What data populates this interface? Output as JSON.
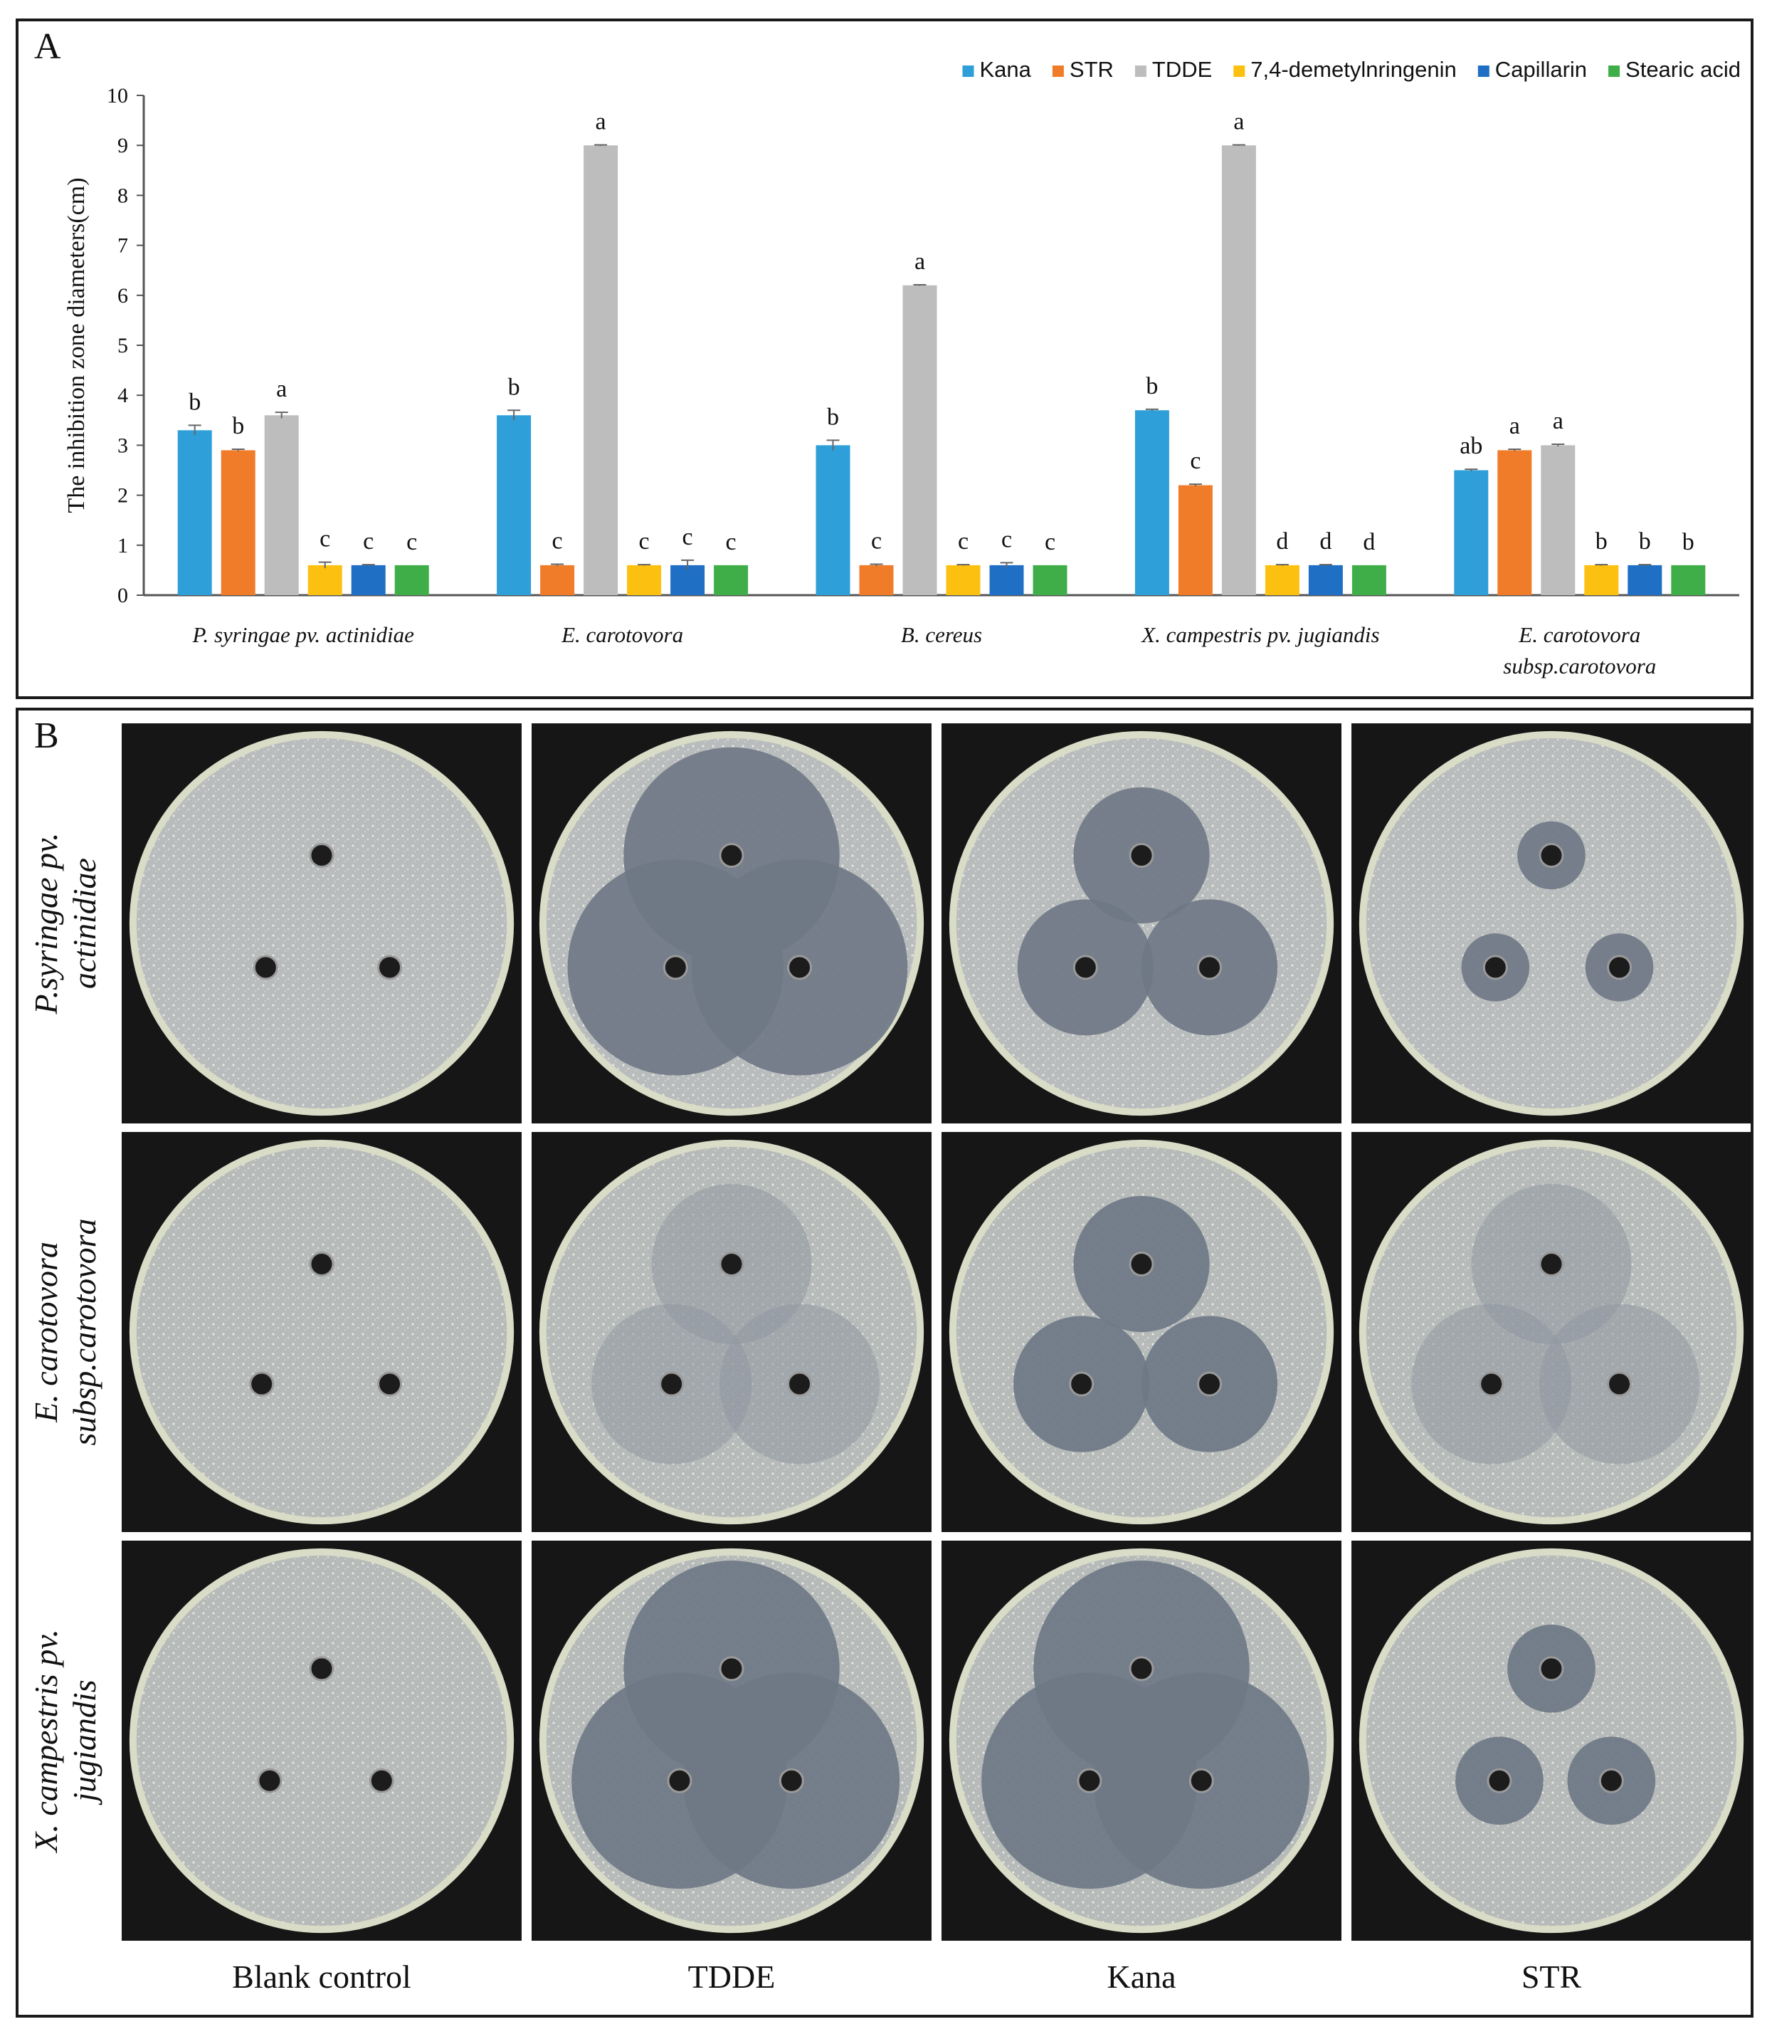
{
  "panel_a": {
    "letter": "A"
  },
  "panel_b": {
    "letter": "B",
    "columns": [
      "Blank control",
      "TDDE",
      "Kana",
      "STR"
    ],
    "rows": [
      {
        "line1": "P.syringae pv.",
        "line2": "actinidiae"
      },
      {
        "line1": "E. carotovora",
        "line2": "subsp.carotovora"
      },
      {
        "line1": "X. campestris pv.",
        "line2": "jugiandis"
      }
    ],
    "plates": [
      [
        {
          "zone": "none"
        },
        {
          "zone": "merged"
        },
        {
          "zone": "large"
        },
        {
          "zone": "small"
        }
      ],
      [
        {
          "zone": "none"
        },
        {
          "zone": "faint"
        },
        {
          "zone": "large"
        },
        {
          "zone": "faint"
        }
      ],
      [
        {
          "zone": "none"
        },
        {
          "zone": "merged"
        },
        {
          "zone": "merged"
        },
        {
          "zone": "medium"
        }
      ]
    ]
  },
  "chart_data": {
    "type": "bar",
    "title": "",
    "xlabel": "",
    "ylabel": "The inhibition zone diameters(cm)",
    "ylim": [
      0,
      10
    ],
    "yticks": [
      0,
      1,
      2,
      3,
      4,
      5,
      6,
      7,
      8,
      9,
      10
    ],
    "legend_position": "top-right",
    "categories": [
      {
        "line1": "P. syringae pv. actinidiae",
        "line2": ""
      },
      {
        "line1": "E. carotovora",
        "line2": ""
      },
      {
        "line1": "B. cereus",
        "line2": ""
      },
      {
        "line1": "X. campestris pv. jugiandis",
        "line2": ""
      },
      {
        "line1": "E. carotovora",
        "line2": "subsp.carotovora"
      }
    ],
    "series": [
      {
        "name": "Kana",
        "color": "#2e9fd8",
        "values": [
          3.3,
          3.6,
          3.0,
          3.7,
          2.5
        ],
        "errors": [
          0.1,
          0.1,
          0.1,
          0.02,
          0.02
        ],
        "labels": [
          "b",
          "b",
          "b",
          "b",
          "ab"
        ]
      },
      {
        "name": "STR",
        "color": "#f07c2a",
        "values": [
          2.9,
          0.6,
          0.6,
          2.2,
          2.9
        ],
        "errors": [
          0.02,
          0.02,
          0.02,
          0.02,
          0.02
        ],
        "labels": [
          "b",
          "c",
          "c",
          "c",
          "a"
        ]
      },
      {
        "name": "TDDE",
        "color": "#bdbdbd",
        "values": [
          3.6,
          9.0,
          6.2,
          9.0,
          3.0
        ],
        "errors": [
          0.06,
          0.01,
          0.01,
          0.01,
          0.02
        ],
        "labels": [
          "a",
          "a",
          "a",
          "a",
          "a"
        ]
      },
      {
        "name": "7,4-demetylnringenin",
        "color": "#fcc010",
        "values": [
          0.6,
          0.6,
          0.6,
          0.6,
          0.6
        ],
        "errors": [
          0.06,
          0.01,
          0.01,
          0.01,
          0.01
        ],
        "labels": [
          "c",
          "c",
          "c",
          "d",
          "b"
        ]
      },
      {
        "name": "Capillarin",
        "color": "#1f6fc4",
        "values": [
          0.6,
          0.6,
          0.6,
          0.6,
          0.6
        ],
        "errors": [
          0.01,
          0.1,
          0.05,
          0.01,
          0.01
        ],
        "labels": [
          "c",
          "c",
          "c",
          "d",
          "b"
        ]
      },
      {
        "name": "Stearic acid",
        "color": "#3fae49",
        "values": [
          0.6,
          0.6,
          0.6,
          0.6,
          0.6
        ],
        "errors": [
          0,
          0,
          0,
          0,
          0
        ],
        "labels": [
          "c",
          "c",
          "c",
          "d",
          "b"
        ]
      }
    ]
  }
}
